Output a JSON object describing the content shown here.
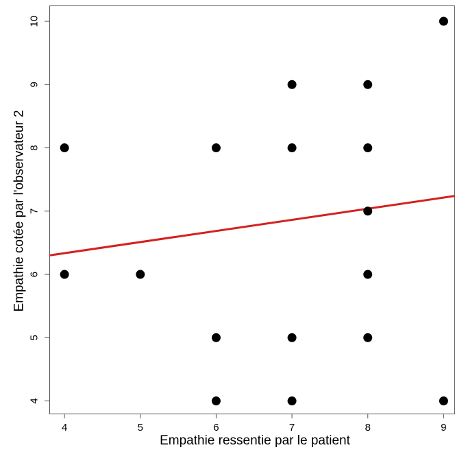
{
  "chart_data": {
    "type": "scatter",
    "title": "",
    "xlabel": "Empathie ressentie par le patient",
    "ylabel": "Empathie cotée par l'observateur 2",
    "xlim": [
      3.8,
      9.15
    ],
    "ylim": [
      3.8,
      10.25
    ],
    "x_ticks": [
      "4",
      "5",
      "6",
      "7",
      "8",
      "9"
    ],
    "y_ticks": [
      "4",
      "5",
      "6",
      "7",
      "8",
      "9",
      "10"
    ],
    "grid": false,
    "legend": "none",
    "point_color": "#000000",
    "line_color": "#d42020",
    "points": [
      {
        "x": 4,
        "y": 8
      },
      {
        "x": 4,
        "y": 6
      },
      {
        "x": 5,
        "y": 6
      },
      {
        "x": 6,
        "y": 8
      },
      {
        "x": 6,
        "y": 5
      },
      {
        "x": 6,
        "y": 4
      },
      {
        "x": 7,
        "y": 9
      },
      {
        "x": 7,
        "y": 8
      },
      {
        "x": 7,
        "y": 5
      },
      {
        "x": 7,
        "y": 4
      },
      {
        "x": 8,
        "y": 9
      },
      {
        "x": 8,
        "y": 8
      },
      {
        "x": 8,
        "y": 7
      },
      {
        "x": 8,
        "y": 6
      },
      {
        "x": 8,
        "y": 5
      },
      {
        "x": 9,
        "y": 10
      },
      {
        "x": 9,
        "y": 4
      }
    ],
    "fit_line": {
      "x_start": 3.8,
      "y_start": 6.3,
      "x_end": 9.15,
      "y_end": 7.24
    }
  }
}
